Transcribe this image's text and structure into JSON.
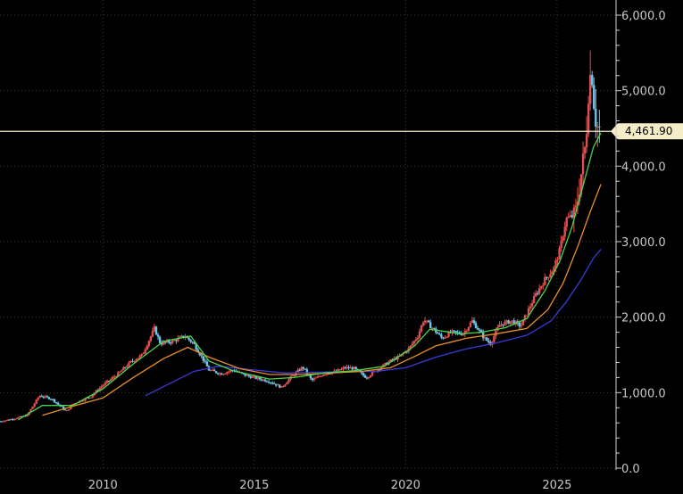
{
  "chart_data": {
    "type": "candlestick",
    "x_range": [
      2006.6,
      2026.95
    ],
    "ylim": [
      0,
      6000
    ],
    "grid": true,
    "y_axis_side": "right",
    "xticks": [
      {
        "value": 2010,
        "label": "2010"
      },
      {
        "value": 2015,
        "label": "2015"
      },
      {
        "value": 2020,
        "label": "2020"
      },
      {
        "value": 2025,
        "label": "2025"
      }
    ],
    "yticks": [
      {
        "value": 0,
        "label": "0.0"
      },
      {
        "value": 1000,
        "label": "1,000.0"
      },
      {
        "value": 2000,
        "label": "2,000.0"
      },
      {
        "value": 3000,
        "label": "3,000.0"
      },
      {
        "value": 4000,
        "label": "4,000.0"
      },
      {
        "value": 5000,
        "label": "5,000.0"
      },
      {
        "value": 6000,
        "label": "6,000.0"
      }
    ],
    "price_line": {
      "value": 4461.9,
      "label": "4,461.90"
    },
    "colors": {
      "up": "#e04f4f",
      "down": "#6fc4e8",
      "ma_short": "#4cd44c",
      "ma_mid": "#e8902a",
      "ma_long": "#3b3bd8",
      "price_line": "#f0e6c0",
      "price_tag": "#f5ecc8"
    },
    "close_points": [
      [
        2006.6,
        620
      ],
      [
        2007.0,
        650
      ],
      [
        2007.5,
        700
      ],
      [
        2007.9,
        960
      ],
      [
        2008.3,
        920
      ],
      [
        2008.8,
        750
      ],
      [
        2009.0,
        850
      ],
      [
        2009.6,
        950
      ],
      [
        2010.0,
        1100
      ],
      [
        2010.5,
        1250
      ],
      [
        2010.9,
        1400
      ],
      [
        2011.3,
        1500
      ],
      [
        2011.7,
        1850
      ],
      [
        2011.9,
        1650
      ],
      [
        2012.3,
        1680
      ],
      [
        2012.7,
        1750
      ],
      [
        2013.0,
        1650
      ],
      [
        2013.3,
        1450
      ],
      [
        2013.5,
        1300
      ],
      [
        2013.9,
        1250
      ],
      [
        2014.3,
        1300
      ],
      [
        2014.7,
        1230
      ],
      [
        2015.0,
        1200
      ],
      [
        2015.5,
        1150
      ],
      [
        2015.9,
        1070
      ],
      [
        2016.2,
        1200
      ],
      [
        2016.6,
        1340
      ],
      [
        2016.9,
        1160
      ],
      [
        2017.3,
        1250
      ],
      [
        2017.7,
        1280
      ],
      [
        2018.0,
        1330
      ],
      [
        2018.3,
        1320
      ],
      [
        2018.7,
        1200
      ],
      [
        2019.0,
        1290
      ],
      [
        2019.5,
        1420
      ],
      [
        2019.8,
        1480
      ],
      [
        2020.1,
        1580
      ],
      [
        2020.4,
        1750
      ],
      [
        2020.6,
        1970
      ],
      [
        2020.9,
        1850
      ],
      [
        2021.2,
        1720
      ],
      [
        2021.5,
        1800
      ],
      [
        2021.9,
        1780
      ],
      [
        2022.2,
        1950
      ],
      [
        2022.6,
        1720
      ],
      [
        2022.8,
        1650
      ],
      [
        2023.1,
        1900
      ],
      [
        2023.5,
        1950
      ],
      [
        2023.8,
        1880
      ],
      [
        2024.0,
        2050
      ],
      [
        2024.3,
        2300
      ],
      [
        2024.6,
        2500
      ],
      [
        2024.9,
        2650
      ],
      [
        2025.1,
        2900
      ],
      [
        2025.3,
        3300
      ],
      [
        2025.6,
        3350
      ],
      [
        2025.8,
        3900
      ],
      [
        2025.95,
        4300
      ],
      [
        2026.05,
        5100
      ],
      [
        2026.15,
        5300
      ],
      [
        2026.25,
        4700
      ],
      [
        2026.35,
        4500
      ],
      [
        2026.45,
        4461.9
      ]
    ],
    "ma_short_points": [
      [
        2007.2,
        640
      ],
      [
        2008.0,
        830
      ],
      [
        2009.0,
        830
      ],
      [
        2010.0,
        1050
      ],
      [
        2011.0,
        1380
      ],
      [
        2012.0,
        1680
      ],
      [
        2012.9,
        1750
      ],
      [
        2013.5,
        1420
      ],
      [
        2014.3,
        1290
      ],
      [
        2015.5,
        1180
      ],
      [
        2016.3,
        1200
      ],
      [
        2017.3,
        1260
      ],
      [
        2018.3,
        1290
      ],
      [
        2019.3,
        1350
      ],
      [
        2020.3,
        1620
      ],
      [
        2020.8,
        1840
      ],
      [
        2021.8,
        1780
      ],
      [
        2022.5,
        1800
      ],
      [
        2023.3,
        1860
      ],
      [
        2024.0,
        1980
      ],
      [
        2024.6,
        2350
      ],
      [
        2025.1,
        2750
      ],
      [
        2025.5,
        3200
      ],
      [
        2025.9,
        3800
      ],
      [
        2026.2,
        4250
      ],
      [
        2026.45,
        4440
      ]
    ],
    "ma_mid_points": [
      [
        2008.0,
        700
      ],
      [
        2009.0,
        820
      ],
      [
        2010.0,
        930
      ],
      [
        2011.0,
        1200
      ],
      [
        2012.0,
        1450
      ],
      [
        2012.8,
        1600
      ],
      [
        2013.5,
        1470
      ],
      [
        2014.5,
        1320
      ],
      [
        2015.5,
        1240
      ],
      [
        2016.5,
        1240
      ],
      [
        2017.5,
        1260
      ],
      [
        2018.5,
        1280
      ],
      [
        2019.5,
        1330
      ],
      [
        2020.3,
        1480
      ],
      [
        2021.0,
        1620
      ],
      [
        2022.0,
        1720
      ],
      [
        2023.0,
        1780
      ],
      [
        2024.0,
        1850
      ],
      [
        2024.7,
        2100
      ],
      [
        2025.2,
        2450
      ],
      [
        2025.7,
        2950
      ],
      [
        2026.1,
        3400
      ],
      [
        2026.45,
        3760
      ]
    ],
    "ma_long_points": [
      [
        2011.4,
        960
      ],
      [
        2012.0,
        1080
      ],
      [
        2013.0,
        1280
      ],
      [
        2013.8,
        1350
      ],
      [
        2015.0,
        1300
      ],
      [
        2016.0,
        1260
      ],
      [
        2017.0,
        1270
      ],
      [
        2018.0,
        1280
      ],
      [
        2019.0,
        1280
      ],
      [
        2020.0,
        1330
      ],
      [
        2021.0,
        1470
      ],
      [
        2022.0,
        1580
      ],
      [
        2023.0,
        1660
      ],
      [
        2024.0,
        1760
      ],
      [
        2024.8,
        1950
      ],
      [
        2025.3,
        2200
      ],
      [
        2025.8,
        2500
      ],
      [
        2026.2,
        2780
      ],
      [
        2026.45,
        2900
      ]
    ]
  }
}
